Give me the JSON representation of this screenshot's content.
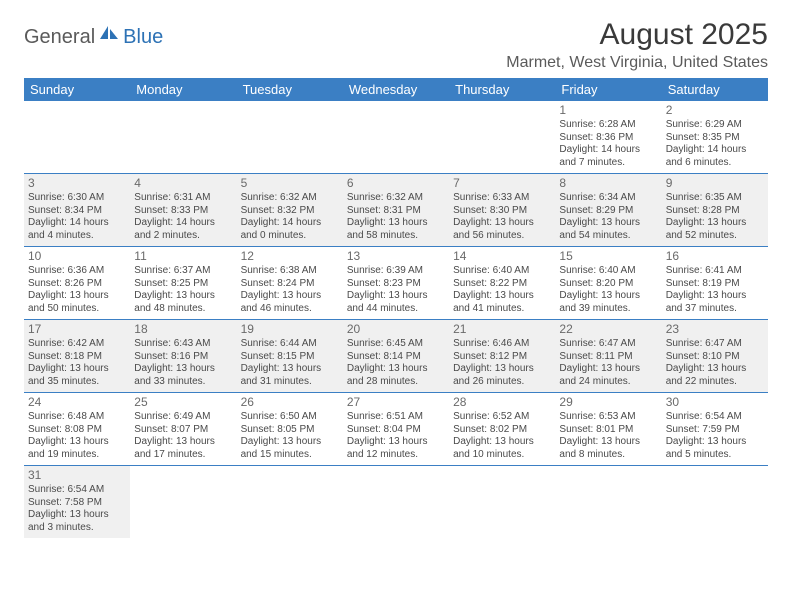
{
  "logo": {
    "part1": "General",
    "part2": "Blue"
  },
  "title": "August 2025",
  "location": "Marmet, West Virginia, United States",
  "colors": {
    "header_bg": "#3b7fc4",
    "header_text": "#ffffff",
    "shaded_bg": "#f0f0f0",
    "border": "#3b7fc4",
    "logo_gray": "#5a5a5a",
    "logo_blue": "#2d72b5",
    "title_color": "#3a3a3a",
    "body_text": "#4a4a4a"
  },
  "day_names": [
    "Sunday",
    "Monday",
    "Tuesday",
    "Wednesday",
    "Thursday",
    "Friday",
    "Saturday"
  ],
  "weeks": [
    [
      {
        "empty": true
      },
      {
        "empty": true
      },
      {
        "empty": true
      },
      {
        "empty": true
      },
      {
        "empty": true
      },
      {
        "num": "1",
        "sunrise": "Sunrise: 6:28 AM",
        "sunset": "Sunset: 8:36 PM",
        "daylight1": "Daylight: 14 hours",
        "daylight2": "and 7 minutes."
      },
      {
        "num": "2",
        "sunrise": "Sunrise: 6:29 AM",
        "sunset": "Sunset: 8:35 PM",
        "daylight1": "Daylight: 14 hours",
        "daylight2": "and 6 minutes."
      }
    ],
    [
      {
        "num": "3",
        "shaded": true,
        "sunrise": "Sunrise: 6:30 AM",
        "sunset": "Sunset: 8:34 PM",
        "daylight1": "Daylight: 14 hours",
        "daylight2": "and 4 minutes."
      },
      {
        "num": "4",
        "shaded": true,
        "sunrise": "Sunrise: 6:31 AM",
        "sunset": "Sunset: 8:33 PM",
        "daylight1": "Daylight: 14 hours",
        "daylight2": "and 2 minutes."
      },
      {
        "num": "5",
        "shaded": true,
        "sunrise": "Sunrise: 6:32 AM",
        "sunset": "Sunset: 8:32 PM",
        "daylight1": "Daylight: 14 hours",
        "daylight2": "and 0 minutes."
      },
      {
        "num": "6",
        "shaded": true,
        "sunrise": "Sunrise: 6:32 AM",
        "sunset": "Sunset: 8:31 PM",
        "daylight1": "Daylight: 13 hours",
        "daylight2": "and 58 minutes."
      },
      {
        "num": "7",
        "shaded": true,
        "sunrise": "Sunrise: 6:33 AM",
        "sunset": "Sunset: 8:30 PM",
        "daylight1": "Daylight: 13 hours",
        "daylight2": "and 56 minutes."
      },
      {
        "num": "8",
        "shaded": true,
        "sunrise": "Sunrise: 6:34 AM",
        "sunset": "Sunset: 8:29 PM",
        "daylight1": "Daylight: 13 hours",
        "daylight2": "and 54 minutes."
      },
      {
        "num": "9",
        "shaded": true,
        "sunrise": "Sunrise: 6:35 AM",
        "sunset": "Sunset: 8:28 PM",
        "daylight1": "Daylight: 13 hours",
        "daylight2": "and 52 minutes."
      }
    ],
    [
      {
        "num": "10",
        "sunrise": "Sunrise: 6:36 AM",
        "sunset": "Sunset: 8:26 PM",
        "daylight1": "Daylight: 13 hours",
        "daylight2": "and 50 minutes."
      },
      {
        "num": "11",
        "sunrise": "Sunrise: 6:37 AM",
        "sunset": "Sunset: 8:25 PM",
        "daylight1": "Daylight: 13 hours",
        "daylight2": "and 48 minutes."
      },
      {
        "num": "12",
        "sunrise": "Sunrise: 6:38 AM",
        "sunset": "Sunset: 8:24 PM",
        "daylight1": "Daylight: 13 hours",
        "daylight2": "and 46 minutes."
      },
      {
        "num": "13",
        "sunrise": "Sunrise: 6:39 AM",
        "sunset": "Sunset: 8:23 PM",
        "daylight1": "Daylight: 13 hours",
        "daylight2": "and 44 minutes."
      },
      {
        "num": "14",
        "sunrise": "Sunrise: 6:40 AM",
        "sunset": "Sunset: 8:22 PM",
        "daylight1": "Daylight: 13 hours",
        "daylight2": "and 41 minutes."
      },
      {
        "num": "15",
        "sunrise": "Sunrise: 6:40 AM",
        "sunset": "Sunset: 8:20 PM",
        "daylight1": "Daylight: 13 hours",
        "daylight2": "and 39 minutes."
      },
      {
        "num": "16",
        "sunrise": "Sunrise: 6:41 AM",
        "sunset": "Sunset: 8:19 PM",
        "daylight1": "Daylight: 13 hours",
        "daylight2": "and 37 minutes."
      }
    ],
    [
      {
        "num": "17",
        "shaded": true,
        "sunrise": "Sunrise: 6:42 AM",
        "sunset": "Sunset: 8:18 PM",
        "daylight1": "Daylight: 13 hours",
        "daylight2": "and 35 minutes."
      },
      {
        "num": "18",
        "shaded": true,
        "sunrise": "Sunrise: 6:43 AM",
        "sunset": "Sunset: 8:16 PM",
        "daylight1": "Daylight: 13 hours",
        "daylight2": "and 33 minutes."
      },
      {
        "num": "19",
        "shaded": true,
        "sunrise": "Sunrise: 6:44 AM",
        "sunset": "Sunset: 8:15 PM",
        "daylight1": "Daylight: 13 hours",
        "daylight2": "and 31 minutes."
      },
      {
        "num": "20",
        "shaded": true,
        "sunrise": "Sunrise: 6:45 AM",
        "sunset": "Sunset: 8:14 PM",
        "daylight1": "Daylight: 13 hours",
        "daylight2": "and 28 minutes."
      },
      {
        "num": "21",
        "shaded": true,
        "sunrise": "Sunrise: 6:46 AM",
        "sunset": "Sunset: 8:12 PM",
        "daylight1": "Daylight: 13 hours",
        "daylight2": "and 26 minutes."
      },
      {
        "num": "22",
        "shaded": true,
        "sunrise": "Sunrise: 6:47 AM",
        "sunset": "Sunset: 8:11 PM",
        "daylight1": "Daylight: 13 hours",
        "daylight2": "and 24 minutes."
      },
      {
        "num": "23",
        "shaded": true,
        "sunrise": "Sunrise: 6:47 AM",
        "sunset": "Sunset: 8:10 PM",
        "daylight1": "Daylight: 13 hours",
        "daylight2": "and 22 minutes."
      }
    ],
    [
      {
        "num": "24",
        "sunrise": "Sunrise: 6:48 AM",
        "sunset": "Sunset: 8:08 PM",
        "daylight1": "Daylight: 13 hours",
        "daylight2": "and 19 minutes."
      },
      {
        "num": "25",
        "sunrise": "Sunrise: 6:49 AM",
        "sunset": "Sunset: 8:07 PM",
        "daylight1": "Daylight: 13 hours",
        "daylight2": "and 17 minutes."
      },
      {
        "num": "26",
        "sunrise": "Sunrise: 6:50 AM",
        "sunset": "Sunset: 8:05 PM",
        "daylight1": "Daylight: 13 hours",
        "daylight2": "and 15 minutes."
      },
      {
        "num": "27",
        "sunrise": "Sunrise: 6:51 AM",
        "sunset": "Sunset: 8:04 PM",
        "daylight1": "Daylight: 13 hours",
        "daylight2": "and 12 minutes."
      },
      {
        "num": "28",
        "sunrise": "Sunrise: 6:52 AM",
        "sunset": "Sunset: 8:02 PM",
        "daylight1": "Daylight: 13 hours",
        "daylight2": "and 10 minutes."
      },
      {
        "num": "29",
        "sunrise": "Sunrise: 6:53 AM",
        "sunset": "Sunset: 8:01 PM",
        "daylight1": "Daylight: 13 hours",
        "daylight2": "and 8 minutes."
      },
      {
        "num": "30",
        "sunrise": "Sunrise: 6:54 AM",
        "sunset": "Sunset: 7:59 PM",
        "daylight1": "Daylight: 13 hours",
        "daylight2": "and 5 minutes."
      }
    ],
    [
      {
        "num": "31",
        "shaded": true,
        "sunrise": "Sunrise: 6:54 AM",
        "sunset": "Sunset: 7:58 PM",
        "daylight1": "Daylight: 13 hours",
        "daylight2": "and 3 minutes."
      },
      {
        "empty": true
      },
      {
        "empty": true
      },
      {
        "empty": true
      },
      {
        "empty": true
      },
      {
        "empty": true
      },
      {
        "empty": true
      }
    ]
  ]
}
